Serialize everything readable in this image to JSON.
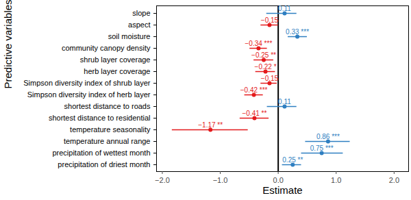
{
  "chart_data": {
    "type": "coefficient",
    "orientation": "horizontal",
    "x_label": "Estimate",
    "y_label": "Predictive variables",
    "categories": [
      "slope",
      "aspect",
      "soil moisture",
      "community canopy density",
      "shrub layer coverage",
      "herb layer coverage",
      "Simpson diversity index of shrub layer",
      "Simpson diversity index of herb layer",
      "shortest distance to roads",
      "shortest distance to residential",
      "temperature seasonality",
      "temperature annual range",
      "precipitation of wettest month",
      "precipitation of driest month"
    ],
    "values": [
      0.11,
      -0.15,
      0.33,
      -0.34,
      -0.25,
      -0.22,
      -0.15,
      -0.42,
      0.11,
      -0.41,
      -1.17,
      0.86,
      0.75,
      0.25
    ],
    "value_labels": [
      "0.11",
      "−0.15",
      "0.33 ***",
      "−0.34 ***",
      "−0.25 **",
      "−0.22 *",
      "−0.15",
      "−0.42 ***",
      "0.11",
      "−0.41 **",
      "−1.17 **",
      "0.86 ***",
      "0.75 ***",
      "0.25 **"
    ],
    "lower": [
      -0.2,
      -0.3,
      0.17,
      -0.49,
      -0.42,
      -0.39,
      -0.3,
      -0.58,
      -0.19,
      -0.66,
      -1.83,
      0.47,
      0.4,
      0.07
    ],
    "upper": [
      0.32,
      0.0,
      0.5,
      -0.19,
      -0.08,
      -0.05,
      -0.02,
      -0.26,
      0.32,
      -0.16,
      -0.52,
      1.24,
      1.12,
      0.4
    ],
    "colors": [
      "#2f7fc1",
      "#e41a1c",
      "#2f7fc1",
      "#e41a1c",
      "#e41a1c",
      "#e41a1c",
      "#e41a1c",
      "#e41a1c",
      "#2f7fc1",
      "#e41a1c",
      "#e41a1c",
      "#2f7fc1",
      "#2f7fc1",
      "#2f7fc1"
    ],
    "xlim": [
      -2.1,
      2.25
    ],
    "xticks": [
      -2,
      -1,
      0,
      1,
      2
    ],
    "reference_line": 0,
    "data_labels": true,
    "grid": false
  }
}
